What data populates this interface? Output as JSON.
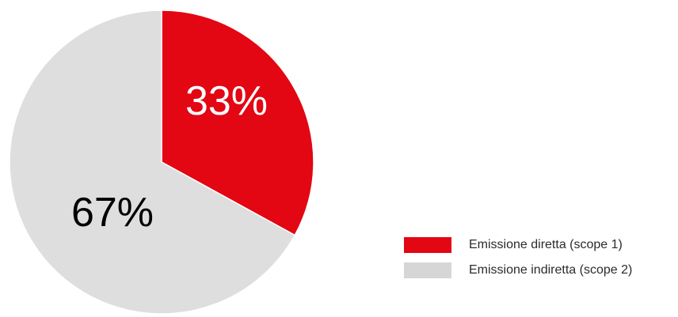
{
  "chart_data": {
    "type": "pie",
    "categories": [
      "Emissione diretta (scope 1)",
      "Emissione indiretta (scope 2)"
    ],
    "values": [
      33,
      67
    ],
    "labels": [
      "33%",
      "67%"
    ],
    "colors": [
      "#e30613",
      "#dedede"
    ],
    "label_colors": [
      "#ffffff",
      "#000000"
    ],
    "start_angle_deg": 0,
    "direction": "clockwise",
    "legend_position": "bottom-right"
  },
  "legend": {
    "items": [
      {
        "label": "Emissione diretta (scope 1)",
        "color": "#e30613"
      },
      {
        "label": "Emissione indiretta (scope 2)",
        "color": "#d6d6d6"
      }
    ]
  }
}
